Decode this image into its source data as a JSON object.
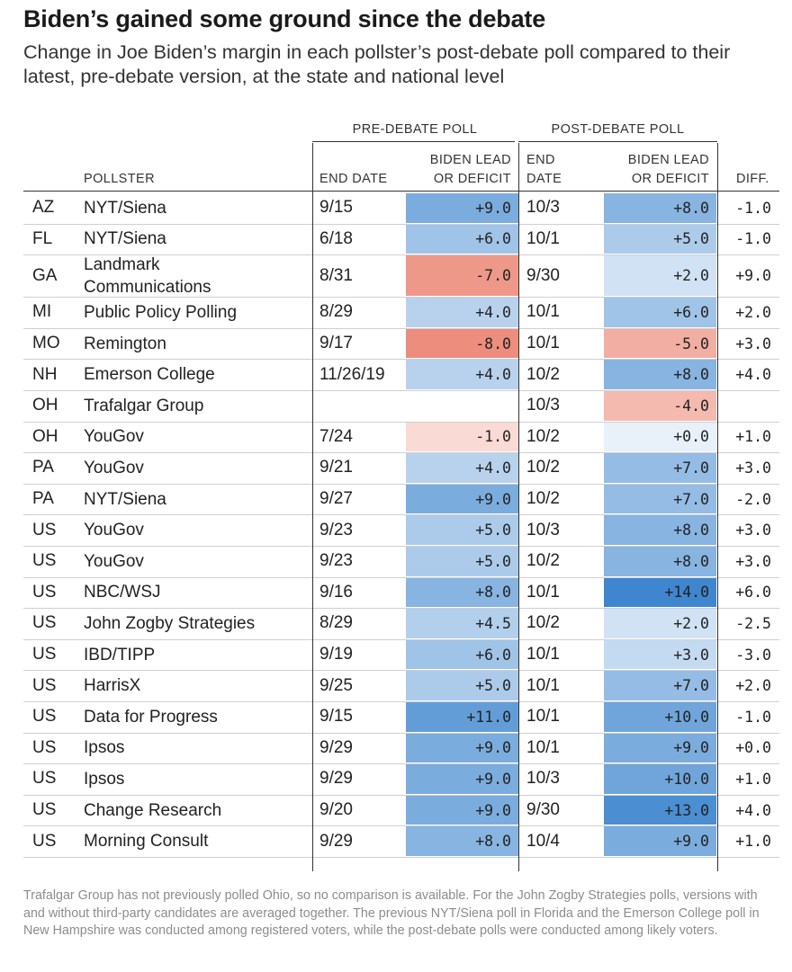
{
  "title": "Biden’s gained some ground since the debate",
  "subtitle": "Change in Joe Biden’s margin in each pollster’s post-debate poll compared to their latest, pre-debate version, at the state and national level",
  "groups": {
    "pre": "PRE-DEBATE POLL",
    "post": "POST-DEBATE POLL"
  },
  "headers": {
    "pollster": "POLLSTER",
    "pre_end_date": "END DATE",
    "pre_lead": [
      "BIDEN LEAD",
      "OR DEFICIT"
    ],
    "post_end_date": [
      "END",
      "DATE"
    ],
    "post_lead": [
      "BIDEN LEAD",
      "OR DEFICIT"
    ],
    "diff": "DIFF."
  },
  "colors": {
    "positive_scale": [
      "#e8f1fa",
      "#3f86cf"
    ],
    "negative_scale": [
      "#fbe5e0",
      "#ec8d7d"
    ]
  },
  "rows": [
    {
      "state": "AZ",
      "pollster": "NYT/Siena",
      "pre_date": "9/15",
      "pre_lead": "+9.0",
      "post_date": "10/3",
      "post_lead": "+8.0",
      "diff": "-1.0"
    },
    {
      "state": "FL",
      "pollster": "NYT/Siena",
      "pre_date": "6/18",
      "pre_lead": "+6.0",
      "post_date": "10/1",
      "post_lead": "+5.0",
      "diff": "-1.0"
    },
    {
      "state": "GA",
      "pollster": "Landmark Communications",
      "pre_date": "8/31",
      "pre_lead": "-7.0",
      "post_date": "9/30",
      "post_lead": "+2.0",
      "diff": "+9.0"
    },
    {
      "state": "MI",
      "pollster": "Public Policy Polling",
      "pre_date": "8/29",
      "pre_lead": "+4.0",
      "post_date": "10/1",
      "post_lead": "+6.0",
      "diff": "+2.0"
    },
    {
      "state": "MO",
      "pollster": "Remington",
      "pre_date": "9/17",
      "pre_lead": "-8.0",
      "post_date": "10/1",
      "post_lead": "-5.0",
      "diff": "+3.0"
    },
    {
      "state": "NH",
      "pollster": "Emerson College",
      "pre_date": "11/26/19",
      "pre_lead": "+4.0",
      "post_date": "10/2",
      "post_lead": "+8.0",
      "diff": "+4.0"
    },
    {
      "state": "OH",
      "pollster": "Trafalgar Group",
      "pre_date": "",
      "pre_lead": "",
      "post_date": "10/3",
      "post_lead": "-4.0",
      "diff": ""
    },
    {
      "state": "OH",
      "pollster": "YouGov",
      "pre_date": "7/24",
      "pre_lead": "-1.0",
      "post_date": "10/2",
      "post_lead": "+0.0",
      "diff": "+1.0"
    },
    {
      "state": "PA",
      "pollster": "YouGov",
      "pre_date": "9/21",
      "pre_lead": "+4.0",
      "post_date": "10/2",
      "post_lead": "+7.0",
      "diff": "+3.0"
    },
    {
      "state": "PA",
      "pollster": "NYT/Siena",
      "pre_date": "9/27",
      "pre_lead": "+9.0",
      "post_date": "10/2",
      "post_lead": "+7.0",
      "diff": "-2.0"
    },
    {
      "state": "US",
      "pollster": "YouGov",
      "pre_date": "9/23",
      "pre_lead": "+5.0",
      "post_date": "10/3",
      "post_lead": "+8.0",
      "diff": "+3.0"
    },
    {
      "state": "US",
      "pollster": "YouGov",
      "pre_date": "9/23",
      "pre_lead": "+5.0",
      "post_date": "10/2",
      "post_lead": "+8.0",
      "diff": "+3.0"
    },
    {
      "state": "US",
      "pollster": "NBC/WSJ",
      "pre_date": "9/16",
      "pre_lead": "+8.0",
      "post_date": "10/1",
      "post_lead": "+14.0",
      "diff": "+6.0"
    },
    {
      "state": "US",
      "pollster": "John Zogby Strategies",
      "pre_date": "8/29",
      "pre_lead": "+4.5",
      "post_date": "10/2",
      "post_lead": "+2.0",
      "diff": "-2.5"
    },
    {
      "state": "US",
      "pollster": "IBD/TIPP",
      "pre_date": "9/19",
      "pre_lead": "+6.0",
      "post_date": "10/1",
      "post_lead": "+3.0",
      "diff": "-3.0"
    },
    {
      "state": "US",
      "pollster": "HarrisX",
      "pre_date": "9/25",
      "pre_lead": "+5.0",
      "post_date": "10/1",
      "post_lead": "+7.0",
      "diff": "+2.0"
    },
    {
      "state": "US",
      "pollster": "Data for Progress",
      "pre_date": "9/15",
      "pre_lead": "+11.0",
      "post_date": "10/1",
      "post_lead": "+10.0",
      "diff": "-1.0"
    },
    {
      "state": "US",
      "pollster": "Ipsos",
      "pre_date": "9/29",
      "pre_lead": "+9.0",
      "post_date": "10/1",
      "post_lead": "+9.0",
      "diff": "+0.0"
    },
    {
      "state": "US",
      "pollster": "Ipsos",
      "pre_date": "9/29",
      "pre_lead": "+9.0",
      "post_date": "10/3",
      "post_lead": "+10.0",
      "diff": "+1.0"
    },
    {
      "state": "US",
      "pollster": "Change Research",
      "pre_date": "9/20",
      "pre_lead": "+9.0",
      "post_date": "9/30",
      "post_lead": "+13.0",
      "diff": "+4.0"
    },
    {
      "state": "US",
      "pollster": "Morning Consult",
      "pre_date": "9/29",
      "pre_lead": "+8.0",
      "post_date": "10/4",
      "post_lead": "+9.0",
      "diff": "+1.0"
    }
  ],
  "note": "Trafalgar Group has not previously polled Ohio, so no comparison is available. For the John Zogby Strategies polls, versions with and without third-party candidates are averaged together. The previous NYT/Siena poll in Florida and the Emerson College poll in New Hampshire was conducted among registered voters, while the post-debate polls were conducted among likely voters."
}
